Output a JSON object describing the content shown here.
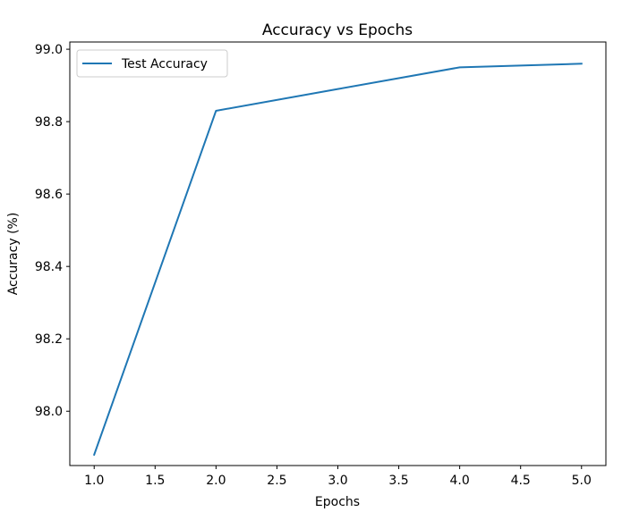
{
  "chart_data": {
    "type": "line",
    "title": "Accuracy vs Epochs",
    "xlabel": "Epochs",
    "ylabel": "Accuracy (%)",
    "xlim": [
      0.8,
      5.2
    ],
    "ylim": [
      97.85,
      99.02
    ],
    "xticks": [
      1.0,
      1.5,
      2.0,
      2.5,
      3.0,
      3.5,
      4.0,
      4.5,
      5.0
    ],
    "xtick_labels": [
      "1.0",
      "1.5",
      "2.0",
      "2.5",
      "3.0",
      "3.5",
      "4.0",
      "4.5",
      "5.0"
    ],
    "yticks": [
      98.0,
      98.2,
      98.4,
      98.6,
      98.8,
      99.0
    ],
    "ytick_labels": [
      "98.0",
      "98.2",
      "98.4",
      "98.6",
      "98.8",
      "99.0"
    ],
    "grid": false,
    "legend_position": "upper left",
    "series": [
      {
        "name": "Test Accuracy",
        "color": "#1f77b4",
        "x": [
          1,
          2,
          3,
          4,
          5
        ],
        "y": [
          97.88,
          98.83,
          98.89,
          98.95,
          98.96
        ]
      }
    ]
  }
}
